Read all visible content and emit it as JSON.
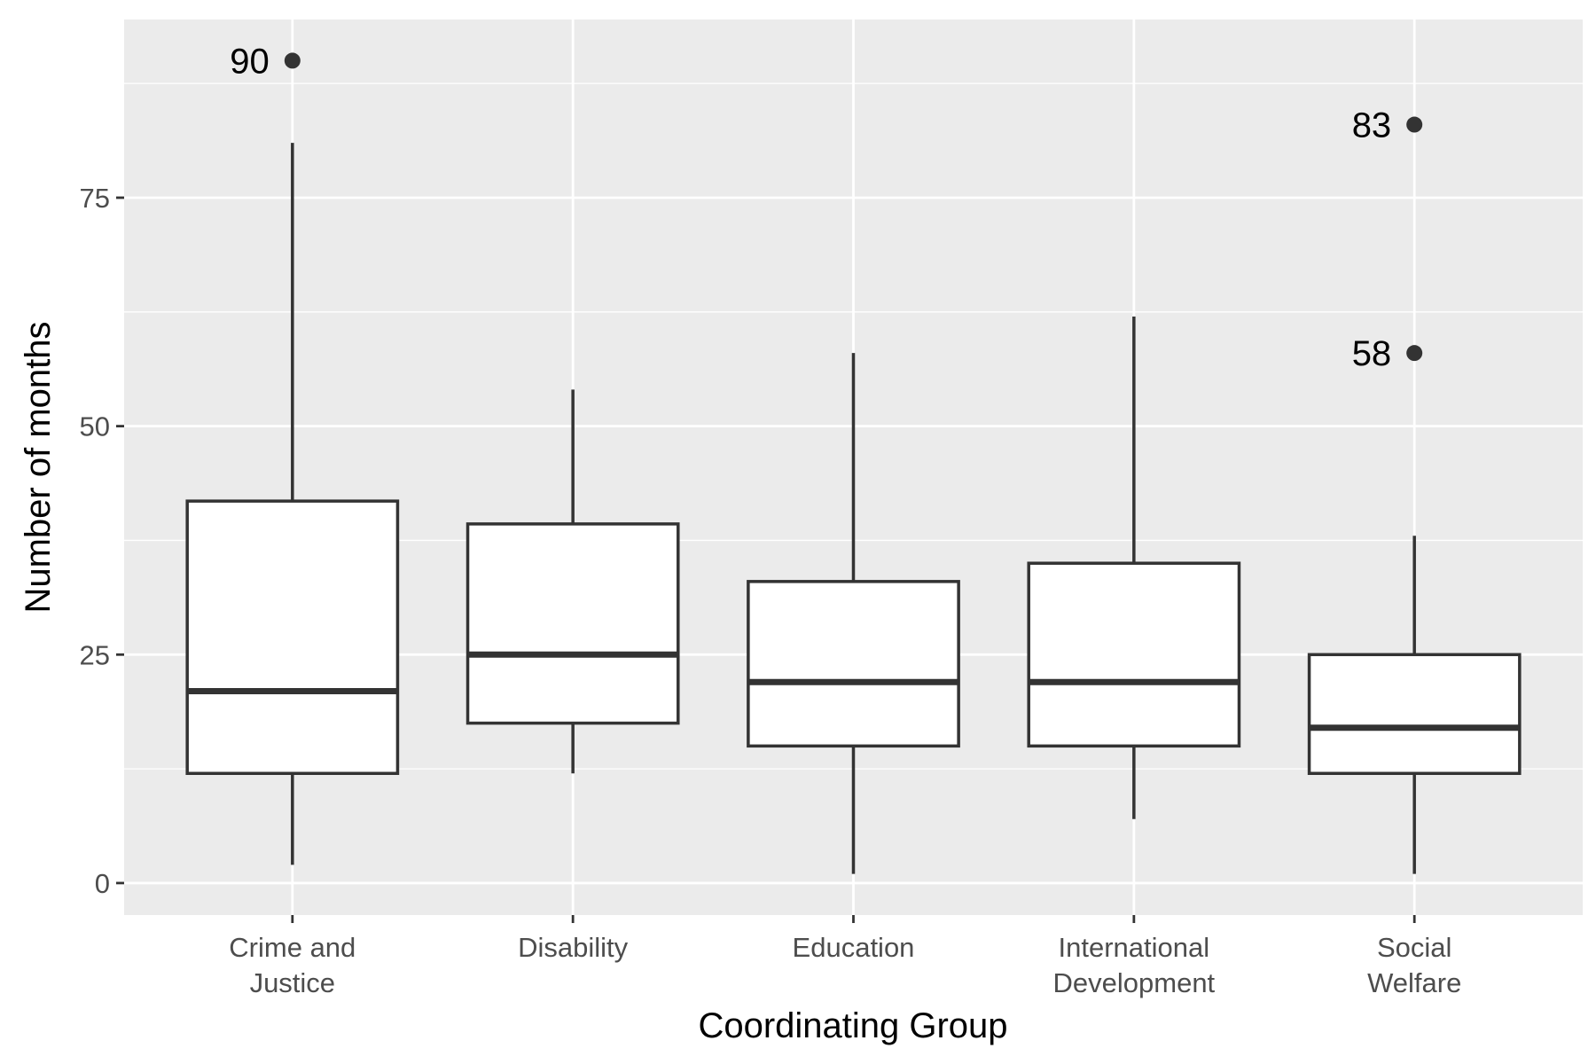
{
  "chart_data": {
    "type": "box",
    "title": "",
    "xlabel": "Coordinating Group",
    "ylabel": "Number of months",
    "ylim": [
      -3.5,
      94.5
    ],
    "yticks": [
      0,
      25,
      50,
      75
    ],
    "grid": true,
    "categories": [
      {
        "lines": [
          "Crime and",
          "Justice"
        ]
      },
      {
        "lines": [
          "Disability"
        ]
      },
      {
        "lines": [
          "Education"
        ]
      },
      {
        "lines": [
          "International",
          "Development"
        ]
      },
      {
        "lines": [
          "Social",
          "Welfare"
        ]
      }
    ],
    "boxes": [
      {
        "whisker_low": 2,
        "q1": 12,
        "median": 21,
        "q3": 41.8,
        "whisker_high": 81,
        "outliers": [
          90
        ]
      },
      {
        "whisker_low": 12,
        "q1": 17.5,
        "median": 25,
        "q3": 39.3,
        "whisker_high": 54,
        "outliers": []
      },
      {
        "whisker_low": 1,
        "q1": 15,
        "median": 22,
        "q3": 33,
        "whisker_high": 58,
        "outliers": []
      },
      {
        "whisker_low": 7,
        "q1": 15,
        "median": 22,
        "q3": 35,
        "whisker_high": 62,
        "outliers": []
      },
      {
        "whisker_low": 1,
        "q1": 12,
        "median": 17,
        "q3": 25,
        "whisker_high": 38,
        "outliers": [
          83,
          58
        ]
      }
    ],
    "outlier_labels": [
      "90",
      "83",
      "58"
    ],
    "colors": {
      "panel": "#ebebeb",
      "grid": "#ffffff",
      "box_line": "#333333",
      "box_fill": "#ffffff",
      "tick": "#333333"
    }
  }
}
